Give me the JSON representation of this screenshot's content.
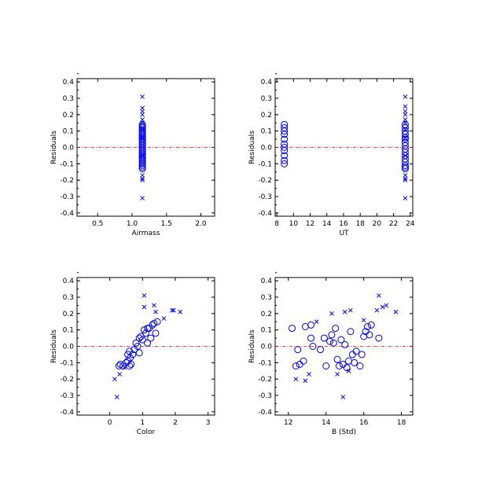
{
  "colors": {
    "marker": "#0000ff",
    "zero_line": "#ff0000",
    "axis": "#000000",
    "background": "#ffffff"
  },
  "chart_data": [
    {
      "type": "scatter",
      "xlabel": "Airmass",
      "ylabel": "Residuals",
      "xlim": [
        0.2,
        2.2
      ],
      "ylim": [
        -0.42,
        0.42
      ],
      "xticks": [
        0.5,
        1.0,
        1.5,
        2.0
      ],
      "xtick_labels": [
        "0.5",
        "1.0",
        "1.5",
        "2.0"
      ],
      "yticks": [
        -0.4,
        -0.3,
        -0.2,
        -0.1,
        0.0,
        0.1,
        0.2,
        0.3,
        0.4
      ],
      "ytick_labels": [
        "-0.4",
        "-0.3",
        "-0.2",
        "-0.1",
        "0.0",
        "0.1",
        "0.2",
        "0.3",
        "0.4"
      ],
      "reference_line": 0.0,
      "series": [
        {
          "marker": "x",
          "points": [
            [
              1.15,
              0.31
            ],
            [
              1.15,
              0.24
            ],
            [
              1.15,
              0.22
            ],
            [
              1.15,
              0.2
            ],
            [
              1.15,
              0.17
            ],
            [
              1.15,
              0.15
            ],
            [
              1.15,
              0.11
            ],
            [
              1.15,
              -0.17
            ],
            [
              1.15,
              -0.19
            ],
            [
              1.15,
              -0.2
            ],
            [
              1.15,
              -0.31
            ],
            [
              1.15,
              0.06
            ],
            [
              1.15,
              -0.05
            ]
          ]
        },
        {
          "marker": "o",
          "points": [
            [
              1.15,
              0.14
            ],
            [
              1.15,
              0.13
            ],
            [
              1.15,
              0.12
            ],
            [
              1.15,
              0.11
            ],
            [
              1.15,
              0.1
            ],
            [
              1.15,
              0.09
            ],
            [
              1.15,
              0.08
            ],
            [
              1.15,
              0.07
            ],
            [
              1.15,
              0.06
            ],
            [
              1.15,
              0.05
            ],
            [
              1.15,
              0.04
            ],
            [
              1.15,
              0.03
            ],
            [
              1.15,
              0.02
            ],
            [
              1.15,
              0.01
            ],
            [
              1.15,
              0.0
            ],
            [
              1.15,
              -0.01
            ],
            [
              1.15,
              -0.02
            ],
            [
              1.15,
              -0.03
            ],
            [
              1.15,
              -0.04
            ],
            [
              1.15,
              -0.05
            ],
            [
              1.15,
              -0.06
            ],
            [
              1.15,
              -0.07
            ],
            [
              1.15,
              -0.08
            ],
            [
              1.15,
              -0.09
            ],
            [
              1.15,
              -0.1
            ],
            [
              1.15,
              -0.11
            ],
            [
              1.15,
              -0.12
            ],
            [
              1.15,
              -0.13
            ]
          ]
        }
      ]
    },
    {
      "type": "scatter",
      "xlabel": "UT",
      "ylabel": "Residuals",
      "xlim": [
        7.8,
        24.3
      ],
      "ylim": [
        -0.42,
        0.42
      ],
      "xticks": [
        8,
        10,
        12,
        14,
        16,
        18,
        20,
        22,
        24
      ],
      "xtick_labels": [
        "8",
        "10",
        "12",
        "14",
        "16",
        "18",
        "20",
        "22",
        "24"
      ],
      "yticks": [
        -0.4,
        -0.3,
        -0.2,
        -0.1,
        0.0,
        0.1,
        0.2,
        0.3,
        0.4
      ],
      "ytick_labels": [
        "-0.4",
        "-0.3",
        "-0.2",
        "-0.1",
        "0.0",
        "0.1",
        "0.2",
        "0.3",
        "0.4"
      ],
      "reference_line": 0.0,
      "series": [
        {
          "marker": "x",
          "points": [
            [
              23.4,
              0.31
            ],
            [
              23.4,
              0.25
            ],
            [
              23.4,
              0.22
            ],
            [
              23.4,
              0.2
            ],
            [
              23.4,
              0.17
            ],
            [
              23.4,
              0.15
            ],
            [
              23.4,
              0.11
            ],
            [
              23.4,
              -0.17
            ],
            [
              23.4,
              -0.19
            ],
            [
              23.4,
              -0.2
            ],
            [
              23.4,
              -0.31
            ],
            [
              23.4,
              0.06
            ],
            [
              23.4,
              -0.05
            ]
          ]
        },
        {
          "marker": "o",
          "points": [
            [
              8.9,
              0.14
            ],
            [
              8.9,
              0.12
            ],
            [
              8.9,
              0.1
            ],
            [
              8.9,
              0.08
            ],
            [
              8.9,
              0.05
            ],
            [
              8.9,
              0.02
            ],
            [
              8.9,
              0.0
            ],
            [
              8.9,
              -0.02
            ],
            [
              8.9,
              -0.05
            ],
            [
              8.9,
              -0.08
            ],
            [
              8.9,
              -0.1
            ],
            [
              23.4,
              0.14
            ],
            [
              23.4,
              0.12
            ],
            [
              23.4,
              0.1
            ],
            [
              23.4,
              0.08
            ],
            [
              23.4,
              0.06
            ],
            [
              23.4,
              0.05
            ],
            [
              23.4,
              0.03
            ],
            [
              23.4,
              0.01
            ],
            [
              23.4,
              -0.01
            ],
            [
              23.4,
              -0.03
            ],
            [
              23.4,
              -0.05
            ],
            [
              23.4,
              -0.07
            ],
            [
              23.4,
              -0.09
            ],
            [
              23.4,
              -0.11
            ],
            [
              23.4,
              -0.12
            ],
            [
              23.4,
              -0.13
            ]
          ]
        }
      ]
    },
    {
      "type": "scatter",
      "xlabel": "Color",
      "ylabel": "Residuals",
      "xlim": [
        -1.0,
        3.2
      ],
      "ylim": [
        -0.42,
        0.42
      ],
      "xticks": [
        0,
        1,
        2,
        3
      ],
      "xtick_labels": [
        "0",
        "1",
        "2",
        "3"
      ],
      "yticks": [
        -0.4,
        -0.3,
        -0.2,
        -0.1,
        0.0,
        0.1,
        0.2,
        0.3,
        0.4
      ],
      "ytick_labels": [
        "-0.4",
        "-0.3",
        "-0.2",
        "-0.1",
        "0.0",
        "0.1",
        "0.2",
        "0.3",
        "0.4"
      ],
      "reference_line": 0.0,
      "series": [
        {
          "marker": "x",
          "points": [
            [
              0.22,
              -0.31
            ],
            [
              0.15,
              -0.2
            ],
            [
              0.3,
              -0.17
            ],
            [
              0.45,
              -0.13
            ],
            [
              1.05,
              0.31
            ],
            [
              1.05,
              0.24
            ],
            [
              1.35,
              0.25
            ],
            [
              1.4,
              0.21
            ],
            [
              1.65,
              0.17
            ],
            [
              1.9,
              0.22
            ],
            [
              1.95,
              0.22
            ],
            [
              2.15,
              0.21
            ]
          ]
        },
        {
          "marker": "o",
          "points": [
            [
              0.28,
              -0.12
            ],
            [
              0.32,
              -0.11
            ],
            [
              0.4,
              -0.12
            ],
            [
              0.5,
              -0.1
            ],
            [
              0.55,
              -0.09
            ],
            [
              0.6,
              -0.12
            ],
            [
              0.62,
              -0.07
            ],
            [
              0.65,
              -0.11
            ],
            [
              0.7,
              -0.05
            ],
            [
              0.55,
              -0.05
            ],
            [
              0.6,
              -0.03
            ],
            [
              0.75,
              -0.02
            ],
            [
              0.8,
              0.02
            ],
            [
              0.85,
              0.0
            ],
            [
              0.9,
              0.05
            ],
            [
              0.95,
              0.06
            ],
            [
              1.0,
              0.04
            ],
            [
              1.05,
              0.1
            ],
            [
              1.1,
              0.08
            ],
            [
              1.15,
              0.02
            ],
            [
              1.2,
              0.11
            ],
            [
              1.25,
              0.05
            ],
            [
              1.3,
              0.13
            ],
            [
              1.35,
              0.14
            ],
            [
              1.4,
              0.08
            ],
            [
              1.45,
              0.15
            ],
            [
              0.9,
              -0.04
            ],
            [
              1.15,
              0.11
            ]
          ]
        }
      ]
    },
    {
      "type": "scatter",
      "xlabel": "B (Std)",
      "ylabel": "Residuals",
      "xlim": [
        11.3,
        18.6
      ],
      "ylim": [
        -0.42,
        0.42
      ],
      "xticks": [
        12,
        14,
        16,
        18
      ],
      "xtick_labels": [
        "12",
        "14",
        "16",
        "18"
      ],
      "yticks": [
        -0.4,
        -0.3,
        -0.2,
        -0.1,
        0.0,
        0.1,
        0.2,
        0.3,
        0.4
      ],
      "ytick_labels": [
        "-0.4",
        "-0.3",
        "-0.2",
        "-0.1",
        "0.0",
        "0.1",
        "0.2",
        "0.3",
        "0.4"
      ],
      "reference_line": 0.0,
      "series": [
        {
          "marker": "x",
          "points": [
            [
              12.4,
              -0.2
            ],
            [
              12.9,
              -0.21
            ],
            [
              13.1,
              -0.17
            ],
            [
              13.5,
              0.15
            ],
            [
              14.3,
              0.2
            ],
            [
              14.6,
              -0.17
            ],
            [
              14.9,
              -0.31
            ],
            [
              15.0,
              0.21
            ],
            [
              15.2,
              -0.15
            ],
            [
              15.3,
              0.22
            ],
            [
              16.0,
              0.16
            ],
            [
              16.7,
              0.22
            ],
            [
              16.8,
              0.31
            ],
            [
              17.0,
              0.24
            ],
            [
              17.2,
              0.25
            ],
            [
              17.7,
              0.21
            ]
          ]
        },
        {
          "marker": "o",
          "points": [
            [
              12.2,
              0.11
            ],
            [
              12.4,
              -0.12
            ],
            [
              12.5,
              -0.02
            ],
            [
              12.6,
              -0.11
            ],
            [
              12.8,
              -0.09
            ],
            [
              12.9,
              0.12
            ],
            [
              13.2,
              0.13
            ],
            [
              13.3,
              0.0
            ],
            [
              13.2,
              0.05
            ],
            [
              13.7,
              -0.02
            ],
            [
              13.9,
              0.05
            ],
            [
              14.0,
              -0.12
            ],
            [
              14.3,
              0.07
            ],
            [
              14.4,
              0.02
            ],
            [
              14.5,
              0.11
            ],
            [
              14.6,
              -0.08
            ],
            [
              14.7,
              -0.12
            ],
            [
              14.8,
              0.04
            ],
            [
              14.9,
              -0.11
            ],
            [
              15.0,
              0.01
            ],
            [
              15.2,
              -0.09
            ],
            [
              15.3,
              0.09
            ],
            [
              15.4,
              -0.05
            ],
            [
              15.5,
              -0.1
            ],
            [
              15.6,
              -0.03
            ],
            [
              15.8,
              -0.12
            ],
            [
              15.9,
              -0.05
            ],
            [
              16.0,
              0.06
            ],
            [
              16.1,
              0.09
            ],
            [
              16.2,
              0.12
            ],
            [
              16.3,
              0.07
            ],
            [
              16.4,
              0.13
            ],
            [
              16.8,
              0.05
            ],
            [
              15.1,
              -0.13
            ],
            [
              14.2,
              0.03
            ]
          ]
        }
      ]
    }
  ]
}
